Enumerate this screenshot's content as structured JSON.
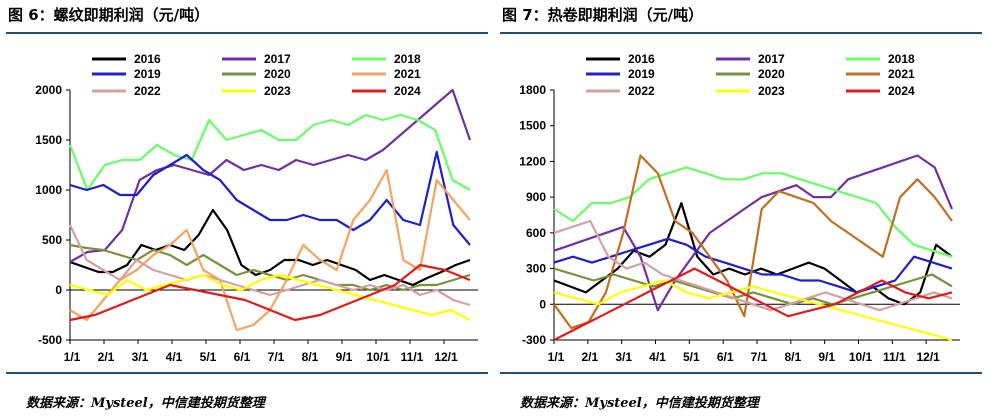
{
  "charts": [
    {
      "title": "图 6：螺纹即期利润（元/吨）",
      "source": "数据来源：Mysteel，中信建投期货整理"
    },
    {
      "title": "图 7：热卷即期利润（元/吨）",
      "source": "数据来源：Mysteel，中信建投期货整理"
    }
  ],
  "chart_data": [
    {
      "type": "line",
      "title": "图 6：螺纹即期利润（元/吨）",
      "ylabel": "元/吨",
      "ylim": [
        -500,
        2000
      ],
      "yticks": [
        -500,
        0,
        500,
        1000,
        1500,
        2000
      ],
      "x_tick_labels": [
        "1/1",
        "2/1",
        "3/1",
        "4/1",
        "5/1",
        "6/1",
        "7/1",
        "8/1",
        "9/1",
        "10/1",
        "11/1",
        "12/1"
      ],
      "legend": "top",
      "series": [
        {
          "name": "2016",
          "color": "#000000",
          "values": [
            280,
            230,
            180,
            180,
            250,
            450,
            400,
            450,
            400,
            550,
            800,
            600,
            250,
            150,
            200,
            300,
            300,
            250,
            300,
            250,
            200,
            100,
            150,
            100,
            50,
            120,
            180,
            250,
            300
          ]
        },
        {
          "name": "2017",
          "color": "#7030a0",
          "values": [
            280,
            380,
            400,
            600,
            1100,
            1200,
            1250,
            1200,
            1150,
            1300,
            1200,
            1250,
            1200,
            1300,
            1250,
            1300,
            1350,
            1300,
            1400,
            1550,
            1700,
            1850,
            2000,
            1500
          ]
        },
        {
          "name": "2018",
          "color": "#66ff66",
          "values": [
            1450,
            1000,
            1250,
            1300,
            1300,
            1450,
            1350,
            1300,
            1700,
            1500,
            1550,
            1600,
            1500,
            1500,
            1650,
            1700,
            1650,
            1750,
            1700,
            1750,
            1700,
            1600,
            1100,
            1000
          ]
        },
        {
          "name": "2019",
          "color": "#1f1fcc",
          "values": [
            1050,
            1000,
            1050,
            950,
            950,
            1150,
            1250,
            1350,
            1200,
            1100,
            900,
            800,
            700,
            700,
            750,
            700,
            700,
            600,
            700,
            900,
            700,
            650,
            1380,
            650,
            450
          ]
        },
        {
          "name": "2020",
          "color": "#76923c",
          "values": [
            450,
            420,
            400,
            350,
            300,
            400,
            350,
            250,
            350,
            250,
            150,
            200,
            150,
            100,
            150,
            100,
            50,
            50,
            0,
            50,
            0,
            50,
            50,
            100,
            150
          ]
        },
        {
          "name": "2021",
          "color": "#f4a460",
          "values": [
            -200,
            -300,
            -100,
            100,
            200,
            350,
            450,
            600,
            200,
            100,
            -400,
            -350,
            -200,
            100,
            450,
            300,
            200,
            700,
            900,
            1200,
            300,
            200,
            1100,
            900,
            700
          ]
        },
        {
          "name": "2022",
          "color": "#d4a0a0",
          "values": [
            650,
            300,
            200,
            100,
            300,
            200,
            150,
            100,
            150,
            100,
            50,
            0,
            -50,
            0,
            50,
            100,
            50,
            0,
            50,
            0,
            50,
            -50,
            0,
            -100,
            -150
          ]
        },
        {
          "name": "2023",
          "color": "#ffff00",
          "values": [
            50,
            0,
            -50,
            100,
            0,
            50,
            100,
            150,
            50,
            0,
            100,
            150,
            100,
            50,
            0,
            -50,
            -100,
            -150,
            -200,
            -250,
            -200,
            -300
          ]
        },
        {
          "name": "2024",
          "color": "#e31a1c",
          "values": [
            -300,
            -250,
            -150,
            -50,
            50,
            0,
            -50,
            -100,
            -200,
            -300,
            -250,
            -150,
            -50,
            50,
            250,
            200,
            100
          ]
        }
      ]
    },
    {
      "type": "line",
      "title": "图 7：热卷即期利润（元/吨）",
      "ylabel": "元/吨",
      "ylim": [
        -300,
        1800
      ],
      "yticks": [
        -300,
        0,
        300,
        600,
        900,
        1200,
        1500,
        1800
      ],
      "x_tick_labels": [
        "1/1",
        "2/1",
        "3/1",
        "4/1",
        "5/1",
        "6/1",
        "7/1",
        "8/1",
        "9/1",
        "10/1",
        "11/1",
        "12/1"
      ],
      "legend": "top",
      "series": [
        {
          "name": "2016",
          "color": "#000000",
          "values": [
            200,
            150,
            100,
            200,
            300,
            450,
            400,
            500,
            850,
            400,
            250,
            300,
            250,
            300,
            250,
            300,
            350,
            300,
            200,
            100,
            150,
            50,
            0,
            100,
            500,
            400
          ]
        },
        {
          "name": "2017",
          "color": "#7030a0",
          "values": [
            450,
            500,
            550,
            600,
            650,
            400,
            -50,
            200,
            400,
            600,
            700,
            800,
            900,
            950,
            1000,
            900,
            900,
            1050,
            1100,
            1150,
            1200,
            1250,
            1150,
            800
          ]
        },
        {
          "name": "2018",
          "color": "#66ff66",
          "values": [
            800,
            700,
            850,
            850,
            900,
            1050,
            1100,
            1150,
            1100,
            1050,
            1050,
            1100,
            1100,
            1050,
            1000,
            950,
            900,
            850,
            650,
            500,
            450,
            400
          ]
        },
        {
          "name": "2019",
          "color": "#1f1fcc",
          "values": [
            350,
            400,
            350,
            400,
            450,
            500,
            550,
            500,
            400,
            350,
            300,
            250,
            250,
            200,
            200,
            150,
            100,
            150,
            200,
            400,
            350,
            300
          ]
        },
        {
          "name": "2020",
          "color": "#76923c",
          "values": [
            300,
            250,
            200,
            250,
            200,
            150,
            200,
            150,
            100,
            50,
            100,
            50,
            0,
            50,
            0,
            50,
            100,
            150,
            200,
            250,
            150
          ]
        },
        {
          "name": "2021",
          "color": "#c07020",
          "values": [
            0,
            -200,
            -150,
            100,
            600,
            1250,
            1100,
            700,
            600,
            400,
            200,
            -100,
            800,
            950,
            900,
            850,
            700,
            600,
            500,
            400,
            900,
            1050,
            900,
            700
          ]
        },
        {
          "name": "2022",
          "color": "#d4a0a0",
          "values": [
            600,
            650,
            700,
            400,
            300,
            350,
            250,
            200,
            150,
            100,
            50,
            0,
            -50,
            0,
            50,
            100,
            50,
            0,
            -50,
            0,
            50,
            100,
            50
          ]
        },
        {
          "name": "2023",
          "color": "#ffff00",
          "values": [
            100,
            50,
            0,
            100,
            150,
            200,
            100,
            50,
            100,
            150,
            100,
            50,
            0,
            -50,
            -100,
            -150,
            -200,
            -250,
            -300
          ]
        },
        {
          "name": "2024",
          "color": "#e31a1c",
          "values": [
            -300,
            -200,
            -100,
            0,
            100,
            200,
            300,
            200,
            100,
            0,
            -100,
            -50,
            0,
            100,
            200,
            100,
            50,
            100
          ]
        }
      ]
    }
  ]
}
